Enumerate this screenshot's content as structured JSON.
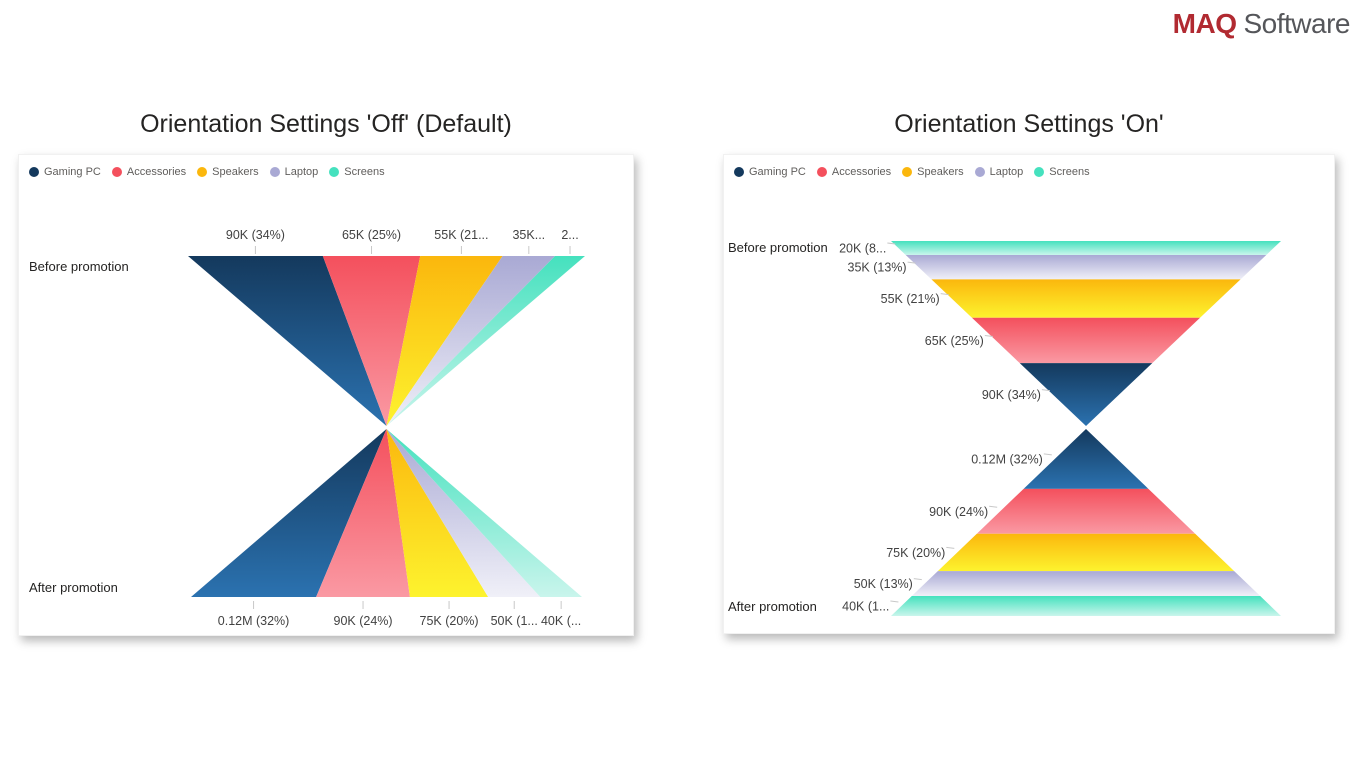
{
  "logo": {
    "brand": "MAQ",
    "suffix": "Software",
    "brand_color": "#B12A31",
    "suffix_color": "#55565A"
  },
  "chart_data": [
    {
      "type": "funnel",
      "variant": "hourglass-funnel",
      "orientation": "horizontal (default)",
      "title": "Orientation Settings 'Off' (Default)",
      "legend_position": "top-left",
      "series": [
        {
          "name": "Gaming PC",
          "color": "#14395D",
          "color_light": "#2B72B0"
        },
        {
          "name": "Accessories",
          "color": "#F4505D",
          "color_light": "#FA99A3"
        },
        {
          "name": "Speakers",
          "color": "#FBB70D",
          "color_light": "#FDF32E"
        },
        {
          "name": "Laptop",
          "color": "#A9A9D4",
          "color_light": "#F0F0F8"
        },
        {
          "name": "Screens",
          "color": "#45E1BE",
          "color_light": "#C9F5EC"
        }
      ],
      "stages": [
        {
          "category": "Before promotion",
          "values": [
            90000,
            65000,
            55000,
            35000,
            20000
          ],
          "display_labels": [
            "90K (34%)",
            "65K (25%)",
            "55K (21...",
            "35K...",
            "2..."
          ]
        },
        {
          "category": "After promotion",
          "values": [
            120000,
            90000,
            75000,
            50000,
            40000
          ],
          "display_labels": [
            "0.12M (32%)",
            "90K (24%)",
            "75K (20%)",
            "50K (1...",
            "40K (..."
          ]
        }
      ]
    },
    {
      "type": "funnel",
      "variant": "hourglass-funnel",
      "orientation": "vertical (rotated)",
      "title": "Orientation Settings 'On'",
      "legend_position": "top-left",
      "series": [
        {
          "name": "Gaming PC",
          "color": "#14395D",
          "color_light": "#2B72B0"
        },
        {
          "name": "Accessories",
          "color": "#F4505D",
          "color_light": "#FA99A3"
        },
        {
          "name": "Speakers",
          "color": "#FBB70D",
          "color_light": "#FDF32E"
        },
        {
          "name": "Laptop",
          "color": "#A9A9D4",
          "color_light": "#F0F0F8"
        },
        {
          "name": "Screens",
          "color": "#45E1BE",
          "color_light": "#C9F5EC"
        }
      ],
      "stages": [
        {
          "category": "Before promotion",
          "values": [
            90000,
            65000,
            55000,
            35000,
            20000
          ],
          "display_labels": [
            "90K (34%)",
            "65K (25%)",
            "55K (21%)",
            "35K (13%)",
            "20K (8..."
          ]
        },
        {
          "category": "After promotion",
          "values": [
            120000,
            90000,
            75000,
            50000,
            40000
          ],
          "display_labels": [
            "0.12M (32%)",
            "90K (24%)",
            "75K (20%)",
            "50K (13%)",
            "40K (1..."
          ]
        }
      ]
    }
  ],
  "style": {
    "tick_color": "#C8C8C8",
    "data_label_color": "#424242",
    "category_label_color": "#252423",
    "legend_text_color": "#605E5C"
  }
}
